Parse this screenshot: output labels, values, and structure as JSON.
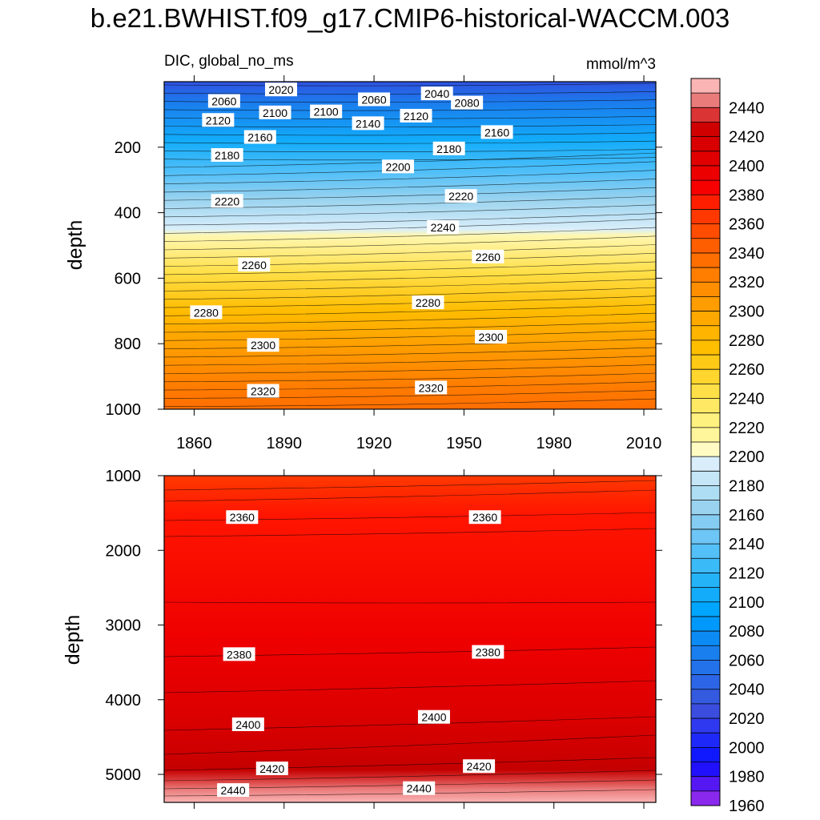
{
  "title": "b.e21.BWHIST.f09_g17.CMIP6-historical-WACCM.003",
  "left_string": "DIC, global_no_ms",
  "right_string": "mmol/m^3",
  "colorbar": {
    "labels": [
      "2440",
      "2420",
      "2400",
      "2380",
      "2360",
      "2340",
      "2320",
      "2300",
      "2280",
      "2260",
      "2240",
      "2220",
      "2200",
      "2180",
      "2160",
      "2140",
      "2120",
      "2100",
      "2080",
      "2060",
      "2040",
      "2020",
      "2000",
      "1980",
      "1960"
    ],
    "colors": [
      "#fbb4b4",
      "#ea7b7b",
      "#da3434",
      "#cf0000",
      "#d80000",
      "#e10000",
      "#ec0000",
      "#f60000",
      "#ff1f00",
      "#ff3800",
      "#ff4c00",
      "#ff5e00",
      "#ff6e00",
      "#ff7e00",
      "#ff8e00",
      "#ff9c00",
      "#ffa900",
      "#ffb400",
      "#ffbe00",
      "#ffca16",
      "#ffd52e",
      "#ffdf48",
      "#ffe964",
      "#fff17f",
      "#fff59b",
      "#fffbc3",
      "#d9eefa",
      "#c4e6f6",
      "#aedef3",
      "#9ad3ef",
      "#85ccf2",
      "#6dc6f5",
      "#54c0f8",
      "#3bbaf8",
      "#25b3f8",
      "#12acfa",
      "#00a6fd",
      "#0099fb",
      "#0c8bf4",
      "#1a7fee",
      "#2472ea",
      "#2c66e6",
      "#335adf",
      "#3a4dde",
      "#2f3af0",
      "#1e29f9",
      "#1019fd",
      "#2010fb",
      "#5518f3",
      "#8a28ee"
    ]
  },
  "chart_data": [
    {
      "type": "heatmap",
      "subtype": "filled contour",
      "panel": "upper",
      "xlabel": "",
      "ylabel": "depth",
      "x_ticks": [
        1860,
        1890,
        1920,
        1950,
        1980,
        2010
      ],
      "y_ticks": [
        200,
        400,
        600,
        800,
        1000
      ],
      "xlim": [
        1850,
        2014
      ],
      "ylim": [
        1000,
        0
      ],
      "contour_labels": [
        {
          "v": "2020",
          "x": 1889,
          "y": 25
        },
        {
          "v": "2060",
          "x": 1870,
          "y": 60
        },
        {
          "v": "2060",
          "x": 1920,
          "y": 55
        },
        {
          "v": "2040",
          "x": 1941,
          "y": 37
        },
        {
          "v": "2080",
          "x": 1951,
          "y": 65
        },
        {
          "v": "2100",
          "x": 1887,
          "y": 95
        },
        {
          "v": "2100",
          "x": 1904,
          "y": 92
        },
        {
          "v": "2120",
          "x": 1868,
          "y": 118
        },
        {
          "v": "2120",
          "x": 1934,
          "y": 105
        },
        {
          "v": "2140",
          "x": 1918,
          "y": 128
        },
        {
          "v": "2160",
          "x": 1882,
          "y": 170
        },
        {
          "v": "2160",
          "x": 1961,
          "y": 155
        },
        {
          "v": "2180",
          "x": 1871,
          "y": 225
        },
        {
          "v": "2180",
          "x": 1945,
          "y": 205
        },
        {
          "v": "2200",
          "x": 1928,
          "y": 260
        },
        {
          "v": "2220",
          "x": 1871,
          "y": 365
        },
        {
          "v": "2220",
          "x": 1949,
          "y": 350
        },
        {
          "v": "2240",
          "x": 1943,
          "y": 445
        },
        {
          "v": "2260",
          "x": 1880,
          "y": 560
        },
        {
          "v": "2260",
          "x": 1958,
          "y": 535
        },
        {
          "v": "2280",
          "x": 1864,
          "y": 705
        },
        {
          "v": "2280",
          "x": 1938,
          "y": 675
        },
        {
          "v": "2300",
          "x": 1883,
          "y": 805
        },
        {
          "v": "2300",
          "x": 1959,
          "y": 780
        },
        {
          "v": "2320",
          "x": 1883,
          "y": 945
        },
        {
          "v": "2320",
          "x": 1939,
          "y": 935
        }
      ]
    },
    {
      "type": "heatmap",
      "subtype": "filled contour",
      "panel": "lower",
      "xlabel": "",
      "ylabel": "depth",
      "x_ticks": [],
      "y_ticks": [
        1000,
        2000,
        3000,
        4000,
        5000
      ],
      "xlim": [
        1850,
        2014
      ],
      "ylim": [
        5375,
        1000
      ],
      "contour_labels": [
        {
          "v": "2360",
          "x": 1876,
          "y": 1560
        },
        {
          "v": "2360",
          "x": 1957,
          "y": 1560
        },
        {
          "v": "2380",
          "x": 1875,
          "y": 3395
        },
        {
          "v": "2380",
          "x": 1958,
          "y": 3365
        },
        {
          "v": "2400",
          "x": 1878,
          "y": 4335
        },
        {
          "v": "2400",
          "x": 1940,
          "y": 4235
        },
        {
          "v": "2420",
          "x": 1886,
          "y": 4925
        },
        {
          "v": "2420",
          "x": 1955,
          "y": 4895
        },
        {
          "v": "2440",
          "x": 1873,
          "y": 5215
        },
        {
          "v": "2440",
          "x": 1935,
          "y": 5190
        }
      ]
    }
  ]
}
